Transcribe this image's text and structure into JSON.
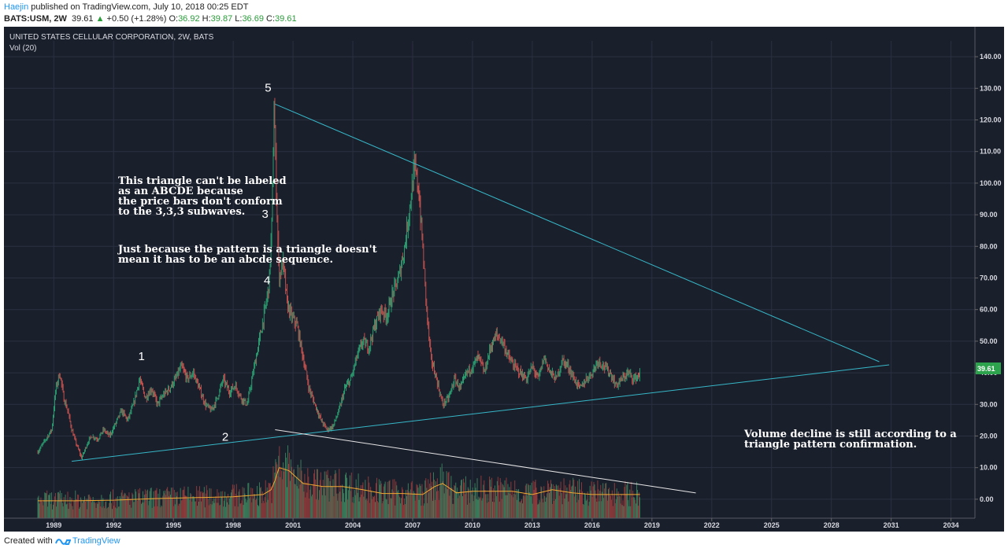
{
  "header": {
    "author": "Haejin",
    "published_text": " published on TradingView.com, July 10, 2018 00:25 EDT",
    "symbol": "BATS:USM, 2W",
    "last": "39.61",
    "change": "+0.50 (+1.28%)",
    "open_label": "O:",
    "open": "36.92",
    "high_label": "H:",
    "high": "39.87",
    "low_label": "L:",
    "low": "36.69",
    "close_label": "C:",
    "close": "39.61"
  },
  "footer": {
    "created_with": "Created with",
    "brand": "TradingView"
  },
  "chart_data": {
    "type": "line",
    "title": "UNITED STATES CELLULAR CORPORATION, 2W, BATS",
    "subtitle": "Vol (20)",
    "y_ticks": [
      "140.00",
      "130.00",
      "120.00",
      "110.00",
      "100.00",
      "90.00",
      "80.00",
      "70.00",
      "60.00",
      "50.00",
      "40.00",
      "30.00",
      "20.00",
      "10.00",
      "0.00"
    ],
    "ylim": [
      -6,
      145
    ],
    "x_ticks": [
      "1989",
      "1992",
      "1995",
      "1998",
      "2001",
      "2004",
      "2007",
      "2010",
      "2013",
      "2016",
      "2019",
      "2022",
      "2025",
      "2028",
      "2031",
      "2034"
    ],
    "xlim": [
      1986.5,
      2035.2
    ],
    "last_price_label": "39.61",
    "series": [
      {
        "x": [
          1988.2,
          1988.5,
          1988.9,
          1989.1,
          1989.3,
          1989.5,
          1989.7,
          1989.9,
          1990.1,
          1990.4,
          1990.7,
          1990.9,
          1991.2,
          1991.5,
          1991.8,
          1992.1,
          1992.4,
          1992.7,
          1993.0,
          1993.3,
          1993.6,
          1993.9,
          1994.2,
          1994.5,
          1994.8,
          1995.1,
          1995.4,
          1995.7,
          1996.0,
          1996.3,
          1996.6,
          1996.9,
          1997.2,
          1997.5,
          1997.8,
          1998.1,
          1998.4,
          1998.7,
          1999.0,
          1999.3,
          1999.6,
          1999.8,
          1999.95,
          2000.05,
          2000.15,
          2000.3,
          2000.5,
          2000.7,
          2000.9,
          2001.2,
          2001.5,
          2001.8,
          2002.1,
          2002.4,
          2002.7,
          2003.0,
          2003.3,
          2003.6,
          2003.9,
          2004.2,
          2004.5,
          2004.8,
          2005.1,
          2005.4,
          2005.7,
          2006.0,
          2006.3,
          2006.6,
          2006.9,
          2007.1,
          2007.3,
          2007.5,
          2007.7,
          2007.9,
          2008.2,
          2008.5,
          2008.8,
          2009.1,
          2009.4,
          2009.7,
          2010.0,
          2010.3,
          2010.6,
          2010.9,
          2011.2,
          2011.5,
          2011.8,
          2012.1,
          2012.4,
          2012.7,
          2013.0,
          2013.3,
          2013.6,
          2013.9,
          2014.2,
          2014.5,
          2014.8,
          2015.1,
          2015.4,
          2015.7,
          2016.0,
          2016.3,
          2016.6,
          2016.9,
          2017.2,
          2017.5,
          2017.8,
          2018.1,
          2018.4
        ],
        "y": [
          15,
          18,
          22,
          35,
          40,
          32,
          28,
          22,
          18,
          13,
          18,
          20,
          19,
          22,
          20,
          24,
          28,
          25,
          30,
          38,
          32,
          35,
          30,
          33,
          35,
          38,
          42,
          38,
          40,
          35,
          30,
          28,
          32,
          38,
          34,
          36,
          32,
          30,
          40,
          50,
          60,
          68,
          90,
          126,
          100,
          70,
          75,
          62,
          58,
          55,
          45,
          35,
          30,
          25,
          22,
          23,
          28,
          35,
          38,
          45,
          50,
          48,
          55,
          60,
          58,
          65,
          70,
          80,
          95,
          105,
          98,
          80,
          60,
          45,
          38,
          30,
          32,
          38,
          35,
          40,
          42,
          45,
          40,
          48,
          52,
          50,
          45,
          42,
          40,
          38,
          42,
          38,
          45,
          40,
          38,
          44,
          42,
          38,
          35,
          38,
          40,
          44,
          42,
          40,
          36,
          38,
          40,
          38,
          39.61
        ],
        "name": "Price"
      }
    ],
    "volume": {
      "name": "Vol (20)",
      "x": [
        1988.2,
        1990,
        1992,
        1994,
        1996,
        1998,
        1999.5,
        1999.9,
        2000.1,
        2000.3,
        2000.8,
        2001.5,
        2002.5,
        2003.5,
        2004.5,
        2005.5,
        2006.5,
        2007.5,
        2008.1,
        2008.5,
        2009.2,
        2010,
        2011,
        2012,
        2013,
        2014,
        2015,
        2016,
        2017,
        2018.4
      ],
      "ma_y": [
        -0.5,
        -0.5,
        -0.3,
        0.2,
        0.5,
        0.8,
        1.5,
        3,
        6,
        10,
        9,
        5,
        4,
        4,
        3,
        1.8,
        1.8,
        1.5,
        4,
        5,
        2,
        2.5,
        2.5,
        2.5,
        1.5,
        3,
        2,
        1.5,
        1.5,
        1.5
      ]
    },
    "trendlines": [
      {
        "name": "upper",
        "x1": 2000.1,
        "y1": 125,
        "x2": 2030.4,
        "y2": 43.5,
        "color": "#36b8c8"
      },
      {
        "name": "lower",
        "x1": 1989.9,
        "y1": 12,
        "x2": 2030.9,
        "y2": 42.5,
        "color": "#36b8c8"
      },
      {
        "name": "volume",
        "x1": 2000.1,
        "y1": 22,
        "x2": 2021.2,
        "y2": 2,
        "color": "#e6e6e6"
      }
    ],
    "wave_labels": [
      {
        "text": "1",
        "x": 1993.4,
        "y": 44
      },
      {
        "text": "2",
        "x": 1997.6,
        "y": 18.5
      },
      {
        "text": "3",
        "x": 1999.6,
        "y": 89
      },
      {
        "text": "4",
        "x": 1999.7,
        "y": 68
      },
      {
        "text": "5",
        "x": 1999.75,
        "y": 129
      }
    ],
    "annotations": [
      {
        "lines": [
          "This triangle can't be labeled",
          "as an ABCDE because",
          "the price bars don't conform",
          "to the 3,3,3 subwaves."
        ]
      },
      {
        "lines": [
          "Just because the pattern is a triangle doesn't",
          "mean it has to be an abcde sequence."
        ]
      },
      {
        "lines": [
          "Volume decline is still according to a",
          "triangle pattern confirmation."
        ]
      }
    ],
    "colors": {
      "background": "#1a1f2c",
      "up": "#2a9d6f",
      "down": "#c0504d",
      "trendline": "#36b8c8",
      "volume_ma": "#f0a830",
      "last_label": "#2ea34e"
    },
    "grid": true
  }
}
